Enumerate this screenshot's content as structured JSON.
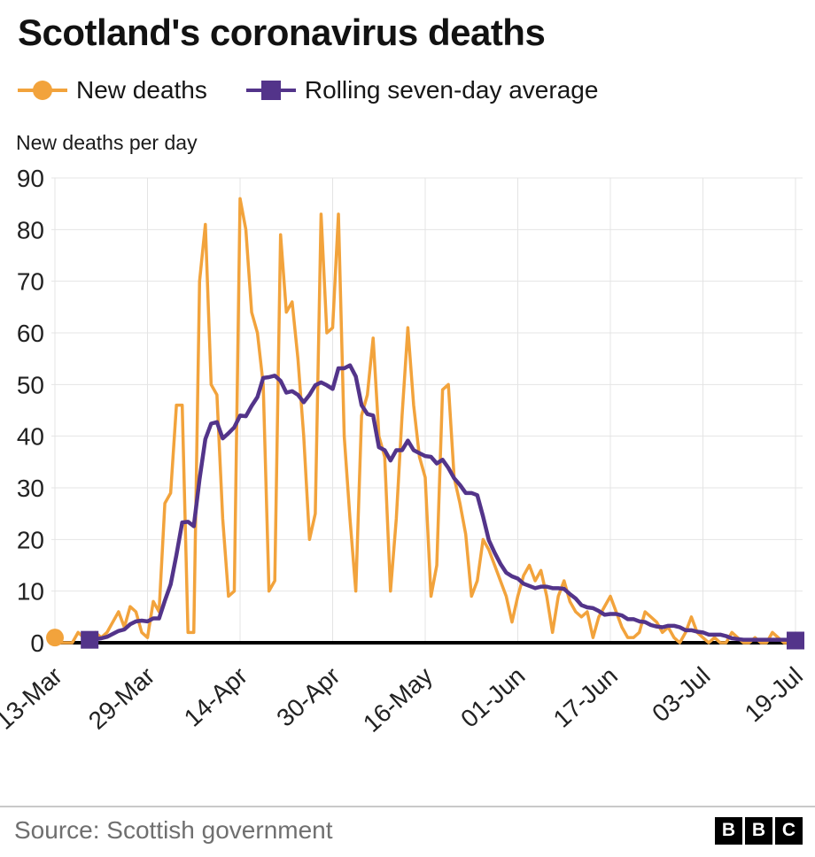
{
  "chart_data": {
    "type": "line",
    "title": "Scotland's coronavirus deaths",
    "ylabel": "New deaths per day",
    "ylim": [
      0,
      90
    ],
    "yticks": [
      0,
      10,
      20,
      30,
      40,
      50,
      60,
      70,
      80,
      90
    ],
    "grid": true,
    "legend_position": "top",
    "x_range": "13-Mar to 19-Jul (daily)",
    "x_tick_labels": [
      "13-Mar",
      "29-Mar",
      "14-Apr",
      "30-Apr",
      "16-May",
      "01-Jun",
      "17-Jun",
      "03-Jul",
      "19-Jul"
    ],
    "x_tick_indices": [
      0,
      16,
      32,
      48,
      64,
      80,
      96,
      112,
      128
    ],
    "series": [
      {
        "name": "New deaths",
        "color": "#f2a33c",
        "marker": "circle",
        "values": [
          1,
          0,
          0,
          0,
          2,
          1,
          0,
          2,
          1,
          2,
          4,
          6,
          3,
          7,
          6,
          2,
          1,
          8,
          6,
          27,
          29,
          46,
          46,
          2,
          2,
          70,
          81,
          50,
          48,
          24,
          9,
          10,
          86,
          80,
          64,
          60,
          50,
          10,
          12,
          79,
          64,
          66,
          55,
          40,
          20,
          25,
          83,
          60,
          61,
          83,
          40,
          24,
          10,
          44,
          48,
          59,
          40,
          36,
          10,
          24,
          44,
          61,
          46,
          36,
          32,
          9,
          15,
          49,
          50,
          32,
          27,
          21,
          9,
          12,
          20,
          18,
          15,
          12,
          9,
          4,
          9,
          13,
          15,
          12,
          14,
          9,
          2,
          9,
          12,
          8,
          6,
          5,
          6,
          1,
          5,
          7,
          9,
          6,
          3,
          1,
          1,
          2,
          6,
          5,
          4,
          2,
          3,
          1,
          0,
          2,
          5,
          2,
          1,
          0,
          1,
          0,
          0,
          2,
          1,
          0,
          0,
          1,
          0,
          0,
          2,
          1,
          0,
          0,
          0
        ]
      },
      {
        "name": "Rolling seven-day average",
        "color": "#53348a",
        "marker": "square",
        "window": 7,
        "derived": "7-day trailing mean of New deaths"
      }
    ]
  },
  "footer": {
    "source": "Source: Scottish government",
    "logo_letters": [
      "B",
      "B",
      "C"
    ]
  }
}
